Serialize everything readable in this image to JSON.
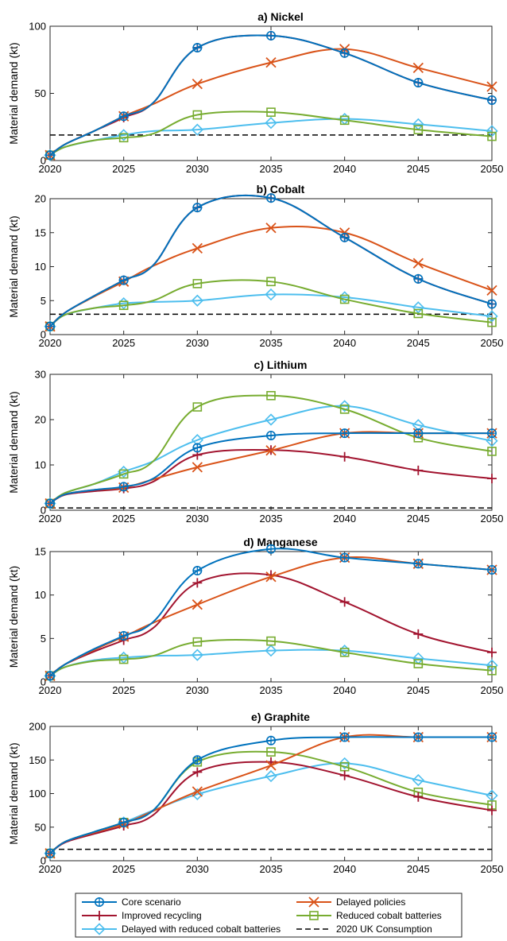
{
  "chart_data": [
    {
      "type": "line",
      "title": "a) Nickel",
      "ylabel": "Material demand (kt)",
      "xlabel": "",
      "ylim": [
        0,
        100
      ],
      "yticks": [
        0,
        50,
        100
      ],
      "xticks": [
        2020,
        2025,
        2030,
        2035,
        2040,
        2045,
        2050
      ],
      "x": [
        2020,
        2021,
        2023,
        2025,
        2027,
        2030,
        2035,
        2040,
        2045,
        2050
      ],
      "reference_line": 19,
      "series": [
        {
          "name": "Core scenario",
          "values": [
            4,
            12,
            22,
            33,
            43,
            84,
            93,
            80,
            58,
            45
          ]
        },
        {
          "name": "Delayed policies",
          "values": [
            4,
            12,
            22,
            33,
            42,
            57,
            73,
            83,
            69,
            55
          ]
        },
        {
          "name": "Improved recycling",
          "values": [
            4,
            12,
            22,
            32,
            43,
            84,
            93,
            80,
            58,
            45
          ]
        },
        {
          "name": "Reduced cobalt batteries",
          "values": [
            4,
            10,
            15,
            17,
            20,
            34,
            36,
            30,
            23,
            18
          ]
        },
        {
          "name": "Delayed with reduced cobalt batteries",
          "values": [
            4,
            10,
            15,
            19,
            22,
            23,
            28,
            31,
            27,
            22
          ]
        }
      ]
    },
    {
      "type": "line",
      "title": "b) Cobalt",
      "ylabel": "Material demand (kt)",
      "xlabel": "",
      "ylim": [
        0,
        20
      ],
      "yticks": [
        0,
        5,
        10,
        15,
        20
      ],
      "xticks": [
        2020,
        2025,
        2030,
        2035,
        2040,
        2045,
        2050
      ],
      "x": [
        2020,
        2021,
        2023,
        2025,
        2027,
        2030,
        2035,
        2040,
        2045,
        2050
      ],
      "reference_line": 3,
      "series": [
        {
          "name": "Core scenario",
          "values": [
            1.2,
            3.2,
            5.7,
            8.0,
            10.2,
            18.7,
            20.1,
            14.3,
            8.2,
            4.5
          ]
        },
        {
          "name": "Delayed policies",
          "values": [
            1.2,
            3.2,
            5.6,
            7.8,
            10.1,
            12.7,
            15.7,
            15.0,
            10.5,
            6.5
          ]
        },
        {
          "name": "Improved recycling",
          "values": [
            1.2,
            3.2,
            5.7,
            8.0,
            10.2,
            18.7,
            20.1,
            14.3,
            8.2,
            4.5
          ]
        },
        {
          "name": "Reduced cobalt batteries",
          "values": [
            1.2,
            2.9,
            3.9,
            4.3,
            5.0,
            7.5,
            7.8,
            5.2,
            3.1,
            1.8
          ]
        },
        {
          "name": "Delayed with reduced cobalt batteries",
          "values": [
            1.2,
            2.9,
            3.9,
            4.6,
            4.8,
            5.0,
            5.9,
            5.5,
            4.0,
            2.7
          ]
        }
      ]
    },
    {
      "type": "line",
      "title": "c) Lithium",
      "ylabel": "Material demand (kt)",
      "xlabel": "",
      "ylim": [
        0,
        30
      ],
      "yticks": [
        0,
        10,
        20,
        30
      ],
      "xticks": [
        2020,
        2025,
        2030,
        2035,
        2040,
        2045,
        2050
      ],
      "x": [
        2020,
        2021,
        2023,
        2025,
        2027,
        2030,
        2035,
        2040,
        2045,
        2050
      ],
      "reference_line": 0.5,
      "series": [
        {
          "name": "Core scenario",
          "values": [
            1.5,
            3.5,
            4.5,
            5.2,
            7,
            13.8,
            16.5,
            17,
            17,
            17
          ]
        },
        {
          "name": "Delayed policies",
          "values": [
            1.5,
            3.5,
            4.5,
            5.0,
            6.8,
            9.5,
            13.2,
            17,
            17,
            17
          ]
        },
        {
          "name": "Improved recycling",
          "values": [
            1.5,
            3.4,
            4.2,
            4.8,
            6.3,
            12.2,
            13.3,
            11.8,
            8.8,
            7.0
          ]
        },
        {
          "name": "Reduced cobalt batteries",
          "values": [
            1.5,
            3.8,
            5.8,
            8.0,
            10.8,
            22.8,
            25.3,
            22.3,
            16.0,
            13.0
          ]
        },
        {
          "name": "Delayed with reduced cobalt batteries",
          "values": [
            1.5,
            3.8,
            5.8,
            8.5,
            10.8,
            15.5,
            20.0,
            23.0,
            18.8,
            15.3
          ]
        }
      ]
    },
    {
      "type": "line",
      "title": "d) Manganese",
      "ylabel": "Material demand (kt)",
      "xlabel": "",
      "ylim": [
        0,
        15
      ],
      "yticks": [
        0,
        5,
        10,
        15
      ],
      "xticks": [
        2020,
        2025,
        2030,
        2035,
        2040,
        2045,
        2050
      ],
      "x": [
        2020,
        2021,
        2023,
        2025,
        2027,
        2030,
        2035,
        2040,
        2045,
        2050
      ],
      "reference_line": null,
      "series": [
        {
          "name": "Core scenario",
          "values": [
            0.7,
            2.0,
            3.8,
            5.3,
            6.9,
            12.8,
            15.3,
            14.3,
            13.6,
            12.9
          ]
        },
        {
          "name": "Delayed policies",
          "values": [
            0.7,
            2.0,
            3.7,
            5.2,
            6.8,
            8.9,
            12.1,
            14.3,
            13.6,
            12.9
          ]
        },
        {
          "name": "Improved recycling",
          "values": [
            0.7,
            2.0,
            3.5,
            4.8,
            6.2,
            11.4,
            12.3,
            9.2,
            5.5,
            3.4
          ]
        },
        {
          "name": "Reduced cobalt batteries",
          "values": [
            0.7,
            1.7,
            2.4,
            2.6,
            3.0,
            4.6,
            4.7,
            3.4,
            2.1,
            1.3
          ]
        },
        {
          "name": "Delayed with reduced cobalt batteries",
          "values": [
            0.7,
            1.7,
            2.5,
            2.8,
            3.0,
            3.1,
            3.6,
            3.6,
            2.7,
            1.9
          ]
        }
      ]
    },
    {
      "type": "line",
      "title": "e) Graphite",
      "ylabel": "Material demand (kt)",
      "xlabel": "",
      "ylim": [
        0,
        200
      ],
      "yticks": [
        0,
        50,
        100,
        150,
        200
      ],
      "xticks": [
        2020,
        2025,
        2030,
        2035,
        2040,
        2045,
        2050
      ],
      "x": [
        2020,
        2021,
        2023,
        2025,
        2027,
        2030,
        2035,
        2040,
        2045,
        2050
      ],
      "reference_line": 17,
      "series": [
        {
          "name": "Core scenario",
          "values": [
            11,
            28,
            43,
            57,
            75,
            150,
            179,
            184,
            184,
            184
          ]
        },
        {
          "name": "Delayed policies",
          "values": [
            11,
            28,
            42,
            55,
            74,
            103,
            142,
            184,
            184,
            184
          ]
        },
        {
          "name": "Improved recycling",
          "values": [
            11,
            27,
            40,
            52,
            68,
            132,
            147,
            127,
            95,
            75
          ]
        },
        {
          "name": "Reduced cobalt batteries",
          "values": [
            11,
            28,
            43,
            57,
            75,
            147,
            162,
            140,
            102,
            83
          ]
        },
        {
          "name": "Delayed with reduced cobalt batteries",
          "values": [
            11,
            28,
            43,
            57,
            75,
            99,
            126,
            145,
            120,
            97
          ]
        }
      ]
    }
  ],
  "legend": {
    "placement": "bottom",
    "entries": [
      {
        "label": "Core scenario",
        "color": "#0072BD",
        "marker": "circle-plus"
      },
      {
        "label": "Delayed policies",
        "color": "#D95319",
        "marker": "x"
      },
      {
        "label": "Improved recycling",
        "color": "#A2142F",
        "marker": "plus"
      },
      {
        "label": "Reduced cobalt batteries",
        "color": "#77AC30",
        "marker": "square"
      },
      {
        "label": "Delayed with reduced cobalt batteries",
        "color": "#4DBEEE",
        "marker": "diamond"
      },
      {
        "label": "2020 UK Consumption",
        "color": "#000000",
        "marker": "dashed"
      }
    ]
  },
  "series_styles": [
    {
      "name": "Core scenario",
      "color": "#0072BD",
      "marker": "circle-plus"
    },
    {
      "name": "Delayed policies",
      "color": "#D95319",
      "marker": "x"
    },
    {
      "name": "Improved recycling",
      "color": "#A2142F",
      "marker": "plus"
    },
    {
      "name": "Reduced cobalt batteries",
      "color": "#77AC30",
      "marker": "square"
    },
    {
      "name": "Delayed with reduced cobalt batteries",
      "color": "#4DBEEE",
      "marker": "diamond"
    }
  ]
}
